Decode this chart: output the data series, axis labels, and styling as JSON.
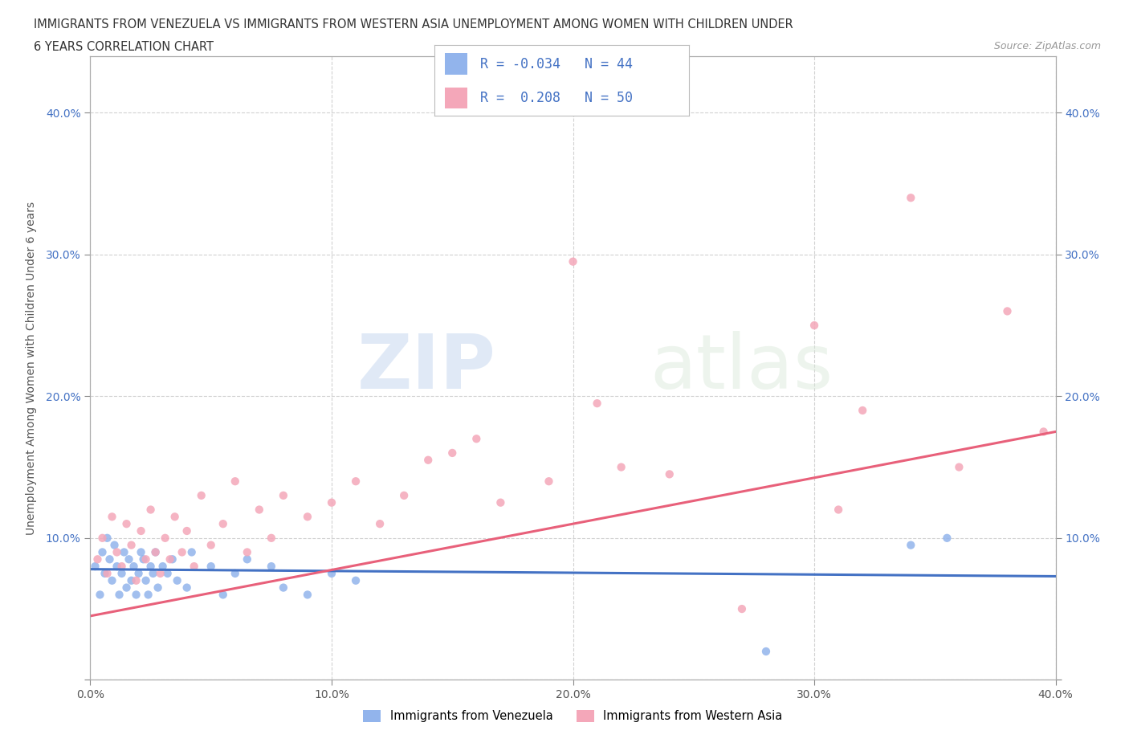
{
  "title_line1": "IMMIGRANTS FROM VENEZUELA VS IMMIGRANTS FROM WESTERN ASIA UNEMPLOYMENT AMONG WOMEN WITH CHILDREN UNDER",
  "title_line2": "6 YEARS CORRELATION CHART",
  "source": "Source: ZipAtlas.com",
  "ylabel": "Unemployment Among Women with Children Under 6 years",
  "xlim": [
    0.0,
    0.4
  ],
  "ylim": [
    0.0,
    0.44
  ],
  "xticks": [
    0.0,
    0.1,
    0.2,
    0.3,
    0.4
  ],
  "yticks": [
    0.0,
    0.1,
    0.2,
    0.3,
    0.4
  ],
  "xticklabels": [
    "0.0%",
    "10.0%",
    "20.0%",
    "30.0%",
    "40.0%"
  ],
  "legend_labels": [
    "Immigrants from Venezuela",
    "Immigrants from Western Asia"
  ],
  "legend_r": [
    -0.034,
    0.208
  ],
  "legend_n": [
    44,
    50
  ],
  "venezuela_color": "#92B4EC",
  "western_asia_color": "#F4A7B9",
  "venezuela_line_color": "#4472C4",
  "western_asia_line_color": "#E8607A",
  "background_color": "#FFFFFF",
  "watermark_zip": "ZIP",
  "watermark_atlas": "atlas",
  "grid_color": "#CCCCCC",
  "tick_color": "#888888",
  "axis_color": "#AAAAAA",
  "venezuela_scatter_x": [
    0.002,
    0.004,
    0.005,
    0.006,
    0.007,
    0.008,
    0.009,
    0.01,
    0.011,
    0.012,
    0.013,
    0.014,
    0.015,
    0.016,
    0.017,
    0.018,
    0.019,
    0.02,
    0.021,
    0.022,
    0.023,
    0.024,
    0.025,
    0.026,
    0.027,
    0.028,
    0.03,
    0.032,
    0.034,
    0.036,
    0.04,
    0.042,
    0.05,
    0.055,
    0.06,
    0.065,
    0.075,
    0.08,
    0.09,
    0.1,
    0.11,
    0.28,
    0.34,
    0.355
  ],
  "venezuela_scatter_y": [
    0.08,
    0.06,
    0.09,
    0.075,
    0.1,
    0.085,
    0.07,
    0.095,
    0.08,
    0.06,
    0.075,
    0.09,
    0.065,
    0.085,
    0.07,
    0.08,
    0.06,
    0.075,
    0.09,
    0.085,
    0.07,
    0.06,
    0.08,
    0.075,
    0.09,
    0.065,
    0.08,
    0.075,
    0.085,
    0.07,
    0.065,
    0.09,
    0.08,
    0.06,
    0.075,
    0.085,
    0.08,
    0.065,
    0.06,
    0.075,
    0.07,
    0.02,
    0.095,
    0.1
  ],
  "western_asia_scatter_x": [
    0.003,
    0.005,
    0.007,
    0.009,
    0.011,
    0.013,
    0.015,
    0.017,
    0.019,
    0.021,
    0.023,
    0.025,
    0.027,
    0.029,
    0.031,
    0.033,
    0.035,
    0.038,
    0.04,
    0.043,
    0.046,
    0.05,
    0.055,
    0.06,
    0.065,
    0.07,
    0.075,
    0.08,
    0.09,
    0.1,
    0.11,
    0.12,
    0.13,
    0.14,
    0.15,
    0.16,
    0.17,
    0.19,
    0.2,
    0.21,
    0.22,
    0.24,
    0.27,
    0.3,
    0.31,
    0.32,
    0.34,
    0.36,
    0.38,
    0.395
  ],
  "western_asia_scatter_y": [
    0.085,
    0.1,
    0.075,
    0.115,
    0.09,
    0.08,
    0.11,
    0.095,
    0.07,
    0.105,
    0.085,
    0.12,
    0.09,
    0.075,
    0.1,
    0.085,
    0.115,
    0.09,
    0.105,
    0.08,
    0.13,
    0.095,
    0.11,
    0.14,
    0.09,
    0.12,
    0.1,
    0.13,
    0.115,
    0.125,
    0.14,
    0.11,
    0.13,
    0.155,
    0.16,
    0.17,
    0.125,
    0.14,
    0.295,
    0.195,
    0.15,
    0.145,
    0.05,
    0.25,
    0.12,
    0.19,
    0.34,
    0.15,
    0.26,
    0.175
  ]
}
